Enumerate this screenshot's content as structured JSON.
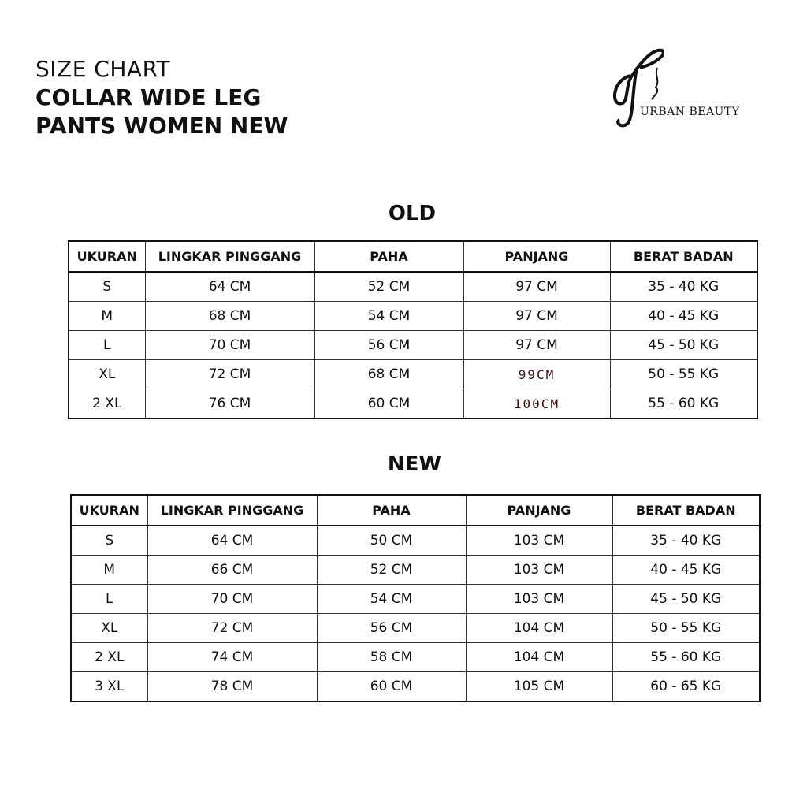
{
  "header": {
    "line1": "SIZE CHART",
    "line2": "COLLAR WIDE LEG",
    "line3": "PANTS WOMEN NEW"
  },
  "logo": {
    "text": "URBAN BEAUTY"
  },
  "columns": [
    "UKURAN",
    "LINGKAR PINGGANG",
    "PAHA",
    "PANJANG",
    "BERAT BADAN"
  ],
  "old": {
    "title": "OLD",
    "rows": [
      [
        "S",
        "64 CM",
        "52 CM",
        "97 CM",
        "35 - 40 KG"
      ],
      [
        "M",
        "68 CM",
        "54 CM",
        "97 CM",
        "40 - 45 KG"
      ],
      [
        "L",
        "70 CM",
        "56 CM",
        "97 CM",
        "45 - 50 KG"
      ],
      [
        "XL",
        "72 CM",
        "68 CM",
        "99CM",
        "50 - 55 KG"
      ],
      [
        "2 XL",
        "76 CM",
        "60 CM",
        "100CM",
        "55 - 60 KG"
      ]
    ]
  },
  "new": {
    "title": "NEW",
    "rows": [
      [
        "S",
        "64 CM",
        "50 CM",
        "103 CM",
        "35 - 40 KG"
      ],
      [
        "M",
        "66 CM",
        "52 CM",
        "103 CM",
        "40 - 45 KG"
      ],
      [
        "L",
        "70 CM",
        "54 CM",
        "103 CM",
        "45 - 50 KG"
      ],
      [
        "XL",
        "72 CM",
        "56 CM",
        "104 CM",
        "50 - 55 KG"
      ],
      [
        "2 XL",
        "74 CM",
        "58 CM",
        "104 CM",
        "55 - 60 KG"
      ],
      [
        "3 XL",
        "78 CM",
        "60 CM",
        "105 CM",
        "60 - 65 KG"
      ]
    ]
  }
}
